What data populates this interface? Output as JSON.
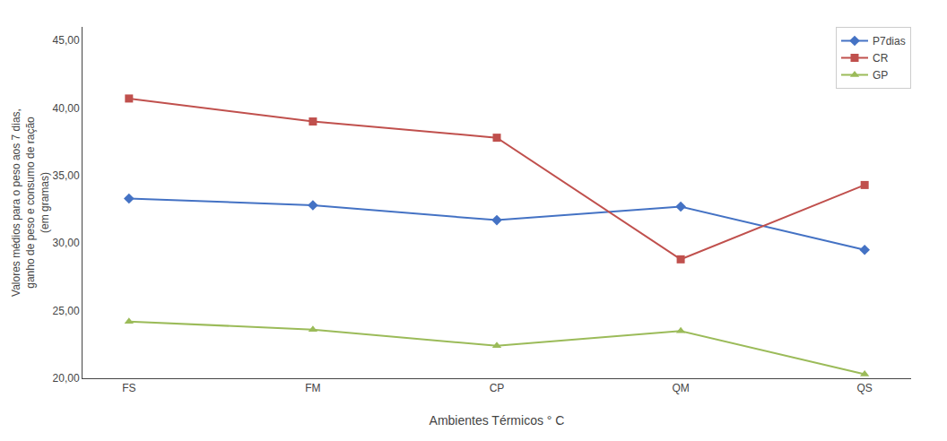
{
  "chart_data": {
    "type": "line",
    "categories": [
      "FS",
      "FM",
      "CP",
      "QM",
      "QS"
    ],
    "series": [
      {
        "name": "P7dias",
        "color": "#4472C4",
        "marker": "diamond",
        "values": [
          33.3,
          32.8,
          31.7,
          32.7,
          29.5
        ]
      },
      {
        "name": "CR",
        "color": "#C0504D",
        "marker": "square",
        "values": [
          40.7,
          39.0,
          37.8,
          28.8,
          34.3
        ]
      },
      {
        "name": "GP",
        "color": "#9BBB59",
        "marker": "triangle-up",
        "values": [
          24.2,
          23.6,
          22.4,
          23.5,
          20.3
        ]
      }
    ],
    "xlabel": "Ambientes Térmicos ° C",
    "ylabel": "Valores médios para o peso aos 7 dias,\nganho de peso e consumo de ração\n(em gramas)",
    "ylim": [
      20.0,
      46.0
    ],
    "yticks": [
      {
        "value": 20.0,
        "label": "20,00"
      },
      {
        "value": 25.0,
        "label": "25,00"
      },
      {
        "value": 30.0,
        "label": "30,00"
      },
      {
        "value": 35.0,
        "label": "35,00"
      },
      {
        "value": 40.0,
        "label": "40,00"
      },
      {
        "value": 45.0,
        "label": "45,00"
      }
    ],
    "grid": false,
    "legend": "upper right"
  }
}
